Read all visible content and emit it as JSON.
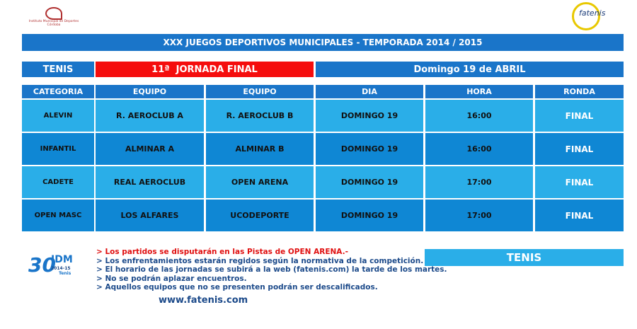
{
  "header": {
    "logo_left": "Instituto Municipal de Deportes Córdoba",
    "logo_right": "fatenis"
  },
  "title": "XXX JUEGOS DEPORTIVOS MUNICIPALES - TEMPORADA 2014 / 2015",
  "info": {
    "sport": "TENIS",
    "round": "11ª  JORNADA FINAL",
    "date": "Domingo 19 de ABRIL"
  },
  "table": {
    "columns": [
      "CATEGORIA",
      "EQUIPO",
      "EQUIPO",
      "DIA",
      "HORA",
      "RONDA"
    ],
    "rows": [
      [
        "ALEVIN",
        "R. AEROCLUB A",
        "R. AEROCLUB B",
        "DOMINGO 19",
        "16:00",
        "FINAL"
      ],
      [
        "INFANTIL",
        "ALMINAR A",
        "ALMINAR B",
        "DOMINGO 19",
        "16:00",
        "FINAL"
      ],
      [
        "CADETE",
        "REAL AEROCLUB",
        "OPEN ARENA",
        "DOMINGO 19",
        "17:00",
        "FINAL"
      ],
      [
        "OPEN MASC",
        "LOS ALFARES",
        "UCODEPORTE",
        "DOMINGO 19",
        "17:00",
        "FINAL"
      ]
    ]
  },
  "notes": [
    "> Los partidos se disputarán en las Pistas de OPEN ARENA.-",
    "> Los enfrentamientos estarán regidos según la normativa de la competición.",
    "> El horario de las jornadas se subirá a la web (fatenis.com) la tarde de los martes.",
    "> No se podrán aplazar encuentros.",
    "> Aquellos equipos que no se presenten podrán ser descalificados."
  ],
  "logo_30": {
    "number": "30",
    "acronym": "IDM",
    "season": "2014-15",
    "sport": "Tenis"
  },
  "footer": {
    "website": "www.fatenis.com",
    "badge": "TENIS"
  }
}
